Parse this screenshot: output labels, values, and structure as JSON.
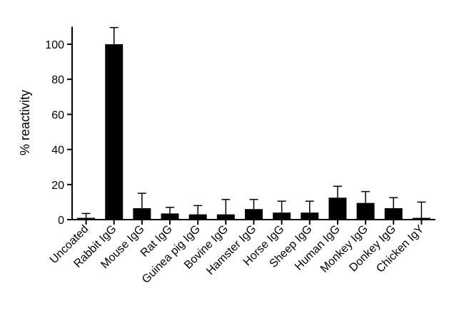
{
  "chart_data": {
    "type": "bar",
    "title": "",
    "xlabel": "",
    "ylabel": "% reactivity",
    "ylim": [
      0,
      110
    ],
    "yticks": [
      0,
      20,
      40,
      60,
      80,
      100
    ],
    "grid": false,
    "bar_color": "#000000",
    "categories": [
      "Uncoated",
      "Rabbit IgG",
      "Mouse IgG",
      "Rat IgG",
      "Guinea pig IgG",
      "Bovine IgG",
      "Hamster IgG",
      "Horse IgG",
      "Sheep IgG",
      "Human IgG",
      "Monkey IgG",
      "Donkey IgG",
      "Chicken IgY"
    ],
    "values": [
      1,
      100,
      6.5,
      3.5,
      3,
      3,
      6,
      4,
      4,
      12.5,
      9.5,
      6.5,
      1
    ],
    "error_upper": [
      3.5,
      109.5,
      15,
      7,
      8,
      11.5,
      11.5,
      10.5,
      10.5,
      19,
      16,
      12.5,
      10
    ]
  }
}
